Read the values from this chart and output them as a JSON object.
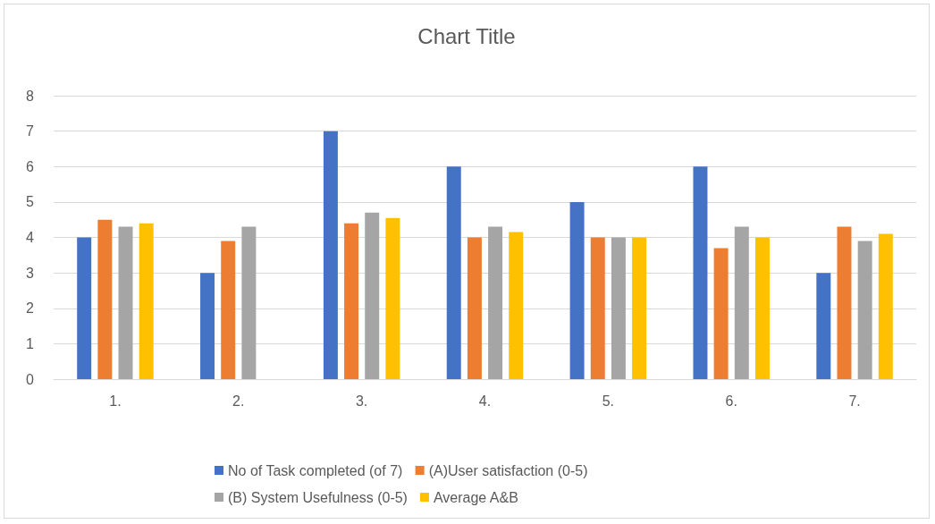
{
  "chart_data": {
    "type": "bar",
    "title": "Chart Title",
    "categories": [
      "1.",
      "2.",
      "3.",
      "4.",
      "5.",
      "6.",
      "7."
    ],
    "series": [
      {
        "name": "No of Task completed (of 7)",
        "color": "#4472c4",
        "values": [
          4,
          3,
          7,
          6,
          5,
          6,
          3
        ]
      },
      {
        "name": "(A)User satisfaction (0-5)",
        "color": "#ed7d31",
        "values": [
          4.5,
          3.9,
          4.4,
          4,
          4,
          3.7,
          4.3
        ]
      },
      {
        "name": "(B) System Usefulness (0-5)",
        "color": "#a5a5a5",
        "values": [
          4.3,
          4.3,
          4.7,
          4.3,
          4,
          4.3,
          3.9
        ]
      },
      {
        "name": "Average A&B",
        "color": "#ffc000",
        "values": [
          4.4,
          null,
          4.55,
          4.15,
          4,
          4,
          4.1
        ]
      }
    ],
    "ylim": [
      0,
      8
    ],
    "yticks": [
      0,
      1,
      2,
      3,
      4,
      5,
      6,
      7,
      8
    ],
    "grid": "y",
    "legend": "bottom"
  }
}
